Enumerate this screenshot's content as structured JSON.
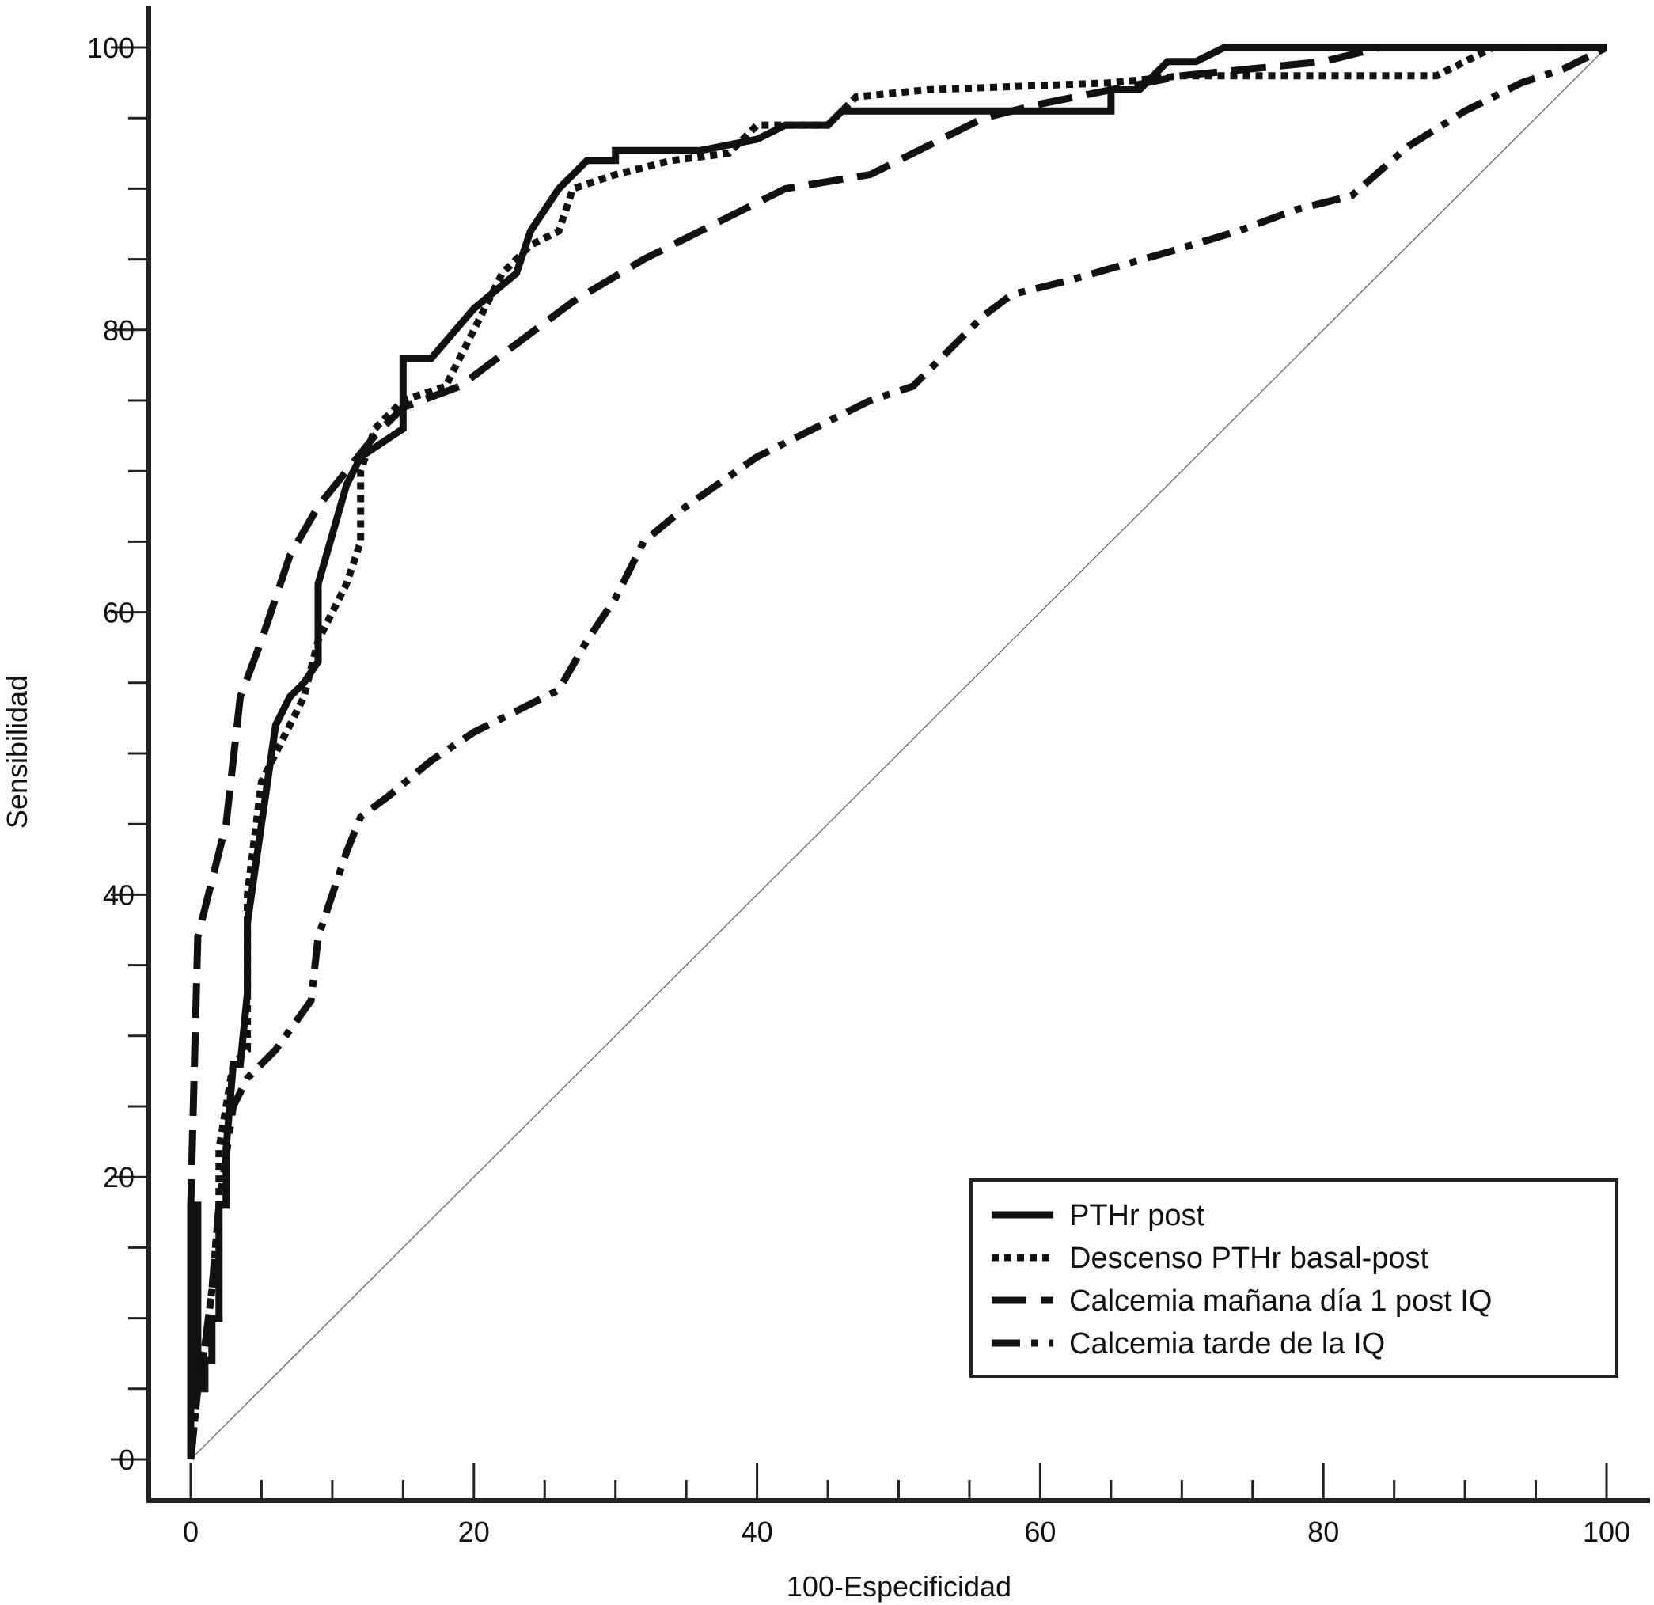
{
  "chart_data": {
    "type": "line",
    "title": "",
    "xlabel": "100-Especificidad",
    "ylabel": "Sensibilidad",
    "xlim": [
      0,
      100
    ],
    "ylim": [
      0,
      100
    ],
    "x_ticks": [
      "0",
      "20",
      "40",
      "60",
      "80",
      "100"
    ],
    "y_ticks": [
      "0",
      "20",
      "40",
      "60",
      "80",
      "100"
    ],
    "grid": false,
    "legend_position": "bottom-right",
    "reference_line": [
      [
        0,
        0
      ],
      [
        100,
        100
      ]
    ],
    "series": [
      {
        "name": "PTHr post",
        "style": "solid",
        "points": [
          [
            0,
            0
          ],
          [
            0,
            18
          ],
          [
            0.5,
            18
          ],
          [
            0.5,
            5
          ],
          [
            1,
            5
          ],
          [
            1,
            7
          ],
          [
            1.5,
            7
          ],
          [
            1.5,
            10
          ],
          [
            2,
            10
          ],
          [
            2,
            18
          ],
          [
            2.5,
            18
          ],
          [
            2.5,
            22
          ],
          [
            3,
            28
          ],
          [
            3.5,
            28
          ],
          [
            4,
            33
          ],
          [
            4,
            38
          ],
          [
            5,
            45
          ],
          [
            6,
            52
          ],
          [
            7,
            54
          ],
          [
            8,
            55
          ],
          [
            9,
            56.5
          ],
          [
            9,
            62
          ],
          [
            10,
            65.5
          ],
          [
            11,
            69
          ],
          [
            12,
            71
          ],
          [
            15,
            73
          ],
          [
            15,
            78
          ],
          [
            17,
            78
          ],
          [
            20,
            81.5
          ],
          [
            23,
            84
          ],
          [
            24,
            87
          ],
          [
            26,
            90
          ],
          [
            28,
            92
          ],
          [
            30,
            92
          ],
          [
            30,
            92.7
          ],
          [
            36,
            92.7
          ],
          [
            40,
            93.5
          ],
          [
            42,
            94.5
          ],
          [
            45,
            94.5
          ],
          [
            46,
            95.5
          ],
          [
            65,
            95.5
          ],
          [
            65,
            97
          ],
          [
            67,
            97
          ],
          [
            69,
            99
          ],
          [
            71,
            99
          ],
          [
            73,
            100
          ],
          [
            100,
            100
          ]
        ]
      },
      {
        "name": "Descenso PTHr basal-post",
        "style": "dotted",
        "points": [
          [
            0,
            0
          ],
          [
            0.5,
            5
          ],
          [
            1,
            8
          ],
          [
            1.5,
            12
          ],
          [
            2,
            18
          ],
          [
            2,
            22
          ],
          [
            3,
            28
          ],
          [
            4,
            29
          ],
          [
            4,
            40
          ],
          [
            5,
            48
          ],
          [
            6,
            50
          ],
          [
            8,
            54
          ],
          [
            9,
            58
          ],
          [
            10,
            60
          ],
          [
            11,
            62
          ],
          [
            12,
            65
          ],
          [
            12,
            70
          ],
          [
            13,
            73
          ],
          [
            15,
            75
          ],
          [
            18,
            76
          ],
          [
            20,
            80
          ],
          [
            22,
            84
          ],
          [
            24,
            86
          ],
          [
            26,
            87
          ],
          [
            27,
            90
          ],
          [
            30,
            91
          ],
          [
            34,
            92
          ],
          [
            38,
            92.5
          ],
          [
            40,
            94.5
          ],
          [
            45,
            94.5
          ],
          [
            47,
            96.5
          ],
          [
            52,
            97
          ],
          [
            65,
            97.5
          ],
          [
            70,
            98
          ],
          [
            88,
            98
          ],
          [
            90,
            99
          ],
          [
            92,
            100
          ],
          [
            100,
            100
          ]
        ]
      },
      {
        "name": "Calcemia mañana día 1 post IQ",
        "style": "dashed",
        "points": [
          [
            0,
            0
          ],
          [
            0,
            18
          ],
          [
            0.5,
            37
          ],
          [
            1.5,
            41
          ],
          [
            2.5,
            45
          ],
          [
            3.5,
            54
          ],
          [
            5,
            58
          ],
          [
            6,
            61
          ],
          [
            7,
            64
          ],
          [
            9,
            67.5
          ],
          [
            11,
            70
          ],
          [
            13,
            72.5
          ],
          [
            15,
            74.5
          ],
          [
            19,
            76
          ],
          [
            23,
            79
          ],
          [
            27,
            82
          ],
          [
            32,
            85
          ],
          [
            36,
            87
          ],
          [
            42,
            90
          ],
          [
            48,
            91
          ],
          [
            52,
            93
          ],
          [
            56,
            95
          ],
          [
            60,
            96
          ],
          [
            65,
            97
          ],
          [
            70,
            98
          ],
          [
            80,
            99
          ],
          [
            84,
            100
          ],
          [
            100,
            100
          ]
        ]
      },
      {
        "name": "Calcemia tarde de la IQ",
        "style": "dashdot",
        "points": [
          [
            0,
            0
          ],
          [
            0.5,
            5
          ],
          [
            1,
            8
          ],
          [
            1.5,
            12
          ],
          [
            2,
            18
          ],
          [
            3,
            25
          ],
          [
            4,
            27
          ],
          [
            6,
            29
          ],
          [
            8.5,
            32.5
          ],
          [
            9,
            37
          ],
          [
            10,
            40
          ],
          [
            11,
            43
          ],
          [
            12,
            45.5
          ],
          [
            14,
            47
          ],
          [
            17,
            49.5
          ],
          [
            20,
            51.5
          ],
          [
            23,
            53
          ],
          [
            26,
            54.5
          ],
          [
            28,
            58
          ],
          [
            30,
            61
          ],
          [
            32,
            65
          ],
          [
            35,
            67.5
          ],
          [
            40,
            71
          ],
          [
            44,
            73
          ],
          [
            48,
            75
          ],
          [
            51,
            76
          ],
          [
            54,
            79
          ],
          [
            56,
            81
          ],
          [
            58,
            82.5
          ],
          [
            62,
            83.5
          ],
          [
            69,
            85.5
          ],
          [
            74,
            87
          ],
          [
            78,
            88.5
          ],
          [
            82,
            89.5
          ],
          [
            86,
            93
          ],
          [
            90,
            95.5
          ],
          [
            94,
            97.5
          ],
          [
            97,
            98.5
          ],
          [
            100,
            100
          ]
        ]
      }
    ]
  }
}
